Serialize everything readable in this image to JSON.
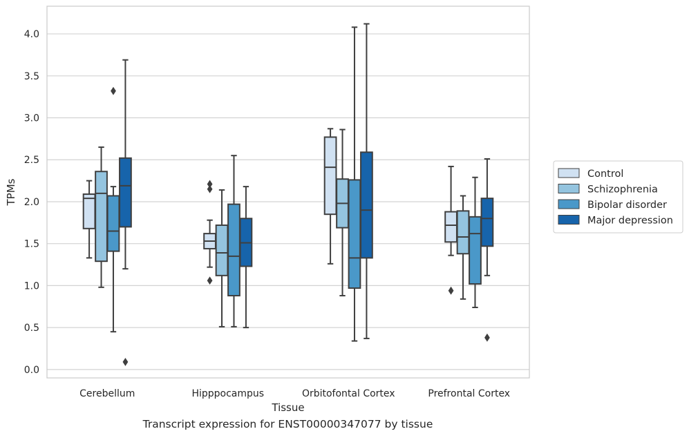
{
  "caption": "Transcript expression for ENST00000347077 by tissue",
  "chart_data": {
    "type": "box",
    "xlabel": "Tissue",
    "ylabel": "TPMs",
    "ylim": [
      -0.1,
      4.33
    ],
    "yticks": [
      "0.0",
      "0.5",
      "1.0",
      "1.5",
      "2.0",
      "2.5",
      "3.0",
      "3.5",
      "4.0"
    ],
    "grid": "horizontal",
    "legend_position": "right",
    "categories": [
      "Cerebellum",
      "Hipppocampus",
      "Orbitofontal Cortex",
      "Prefrontal Cortex"
    ],
    "series": [
      {
        "name": "Control",
        "color": "#d0e1f2",
        "boxes": [
          {
            "whislo": 1.33,
            "q1": 1.68,
            "med": 2.04,
            "q3": 2.09,
            "whishi": 2.25,
            "fliers": []
          },
          {
            "whislo": 1.22,
            "q1": 1.44,
            "med": 1.53,
            "q3": 1.62,
            "whishi": 1.78,
            "fliers": [
              1.06,
              2.15,
              2.21
            ]
          },
          {
            "whislo": 1.26,
            "q1": 1.85,
            "med": 2.41,
            "q3": 2.77,
            "whishi": 2.87,
            "fliers": []
          },
          {
            "whislo": 1.36,
            "q1": 1.52,
            "med": 1.72,
            "q3": 1.88,
            "whishi": 2.42,
            "fliers": [
              0.94
            ]
          }
        ]
      },
      {
        "name": "Schizophrenia",
        "color": "#94c4df",
        "boxes": [
          {
            "whislo": 0.98,
            "q1": 1.29,
            "med": 2.1,
            "q3": 2.36,
            "whishi": 2.65,
            "fliers": []
          },
          {
            "whislo": 0.51,
            "q1": 1.12,
            "med": 1.39,
            "q3": 1.72,
            "whishi": 2.14,
            "fliers": []
          },
          {
            "whislo": 0.88,
            "q1": 1.69,
            "med": 1.98,
            "q3": 2.27,
            "whishi": 2.86,
            "fliers": []
          },
          {
            "whislo": 0.84,
            "q1": 1.38,
            "med": 1.58,
            "q3": 1.89,
            "whishi": 2.07,
            "fliers": []
          }
        ]
      },
      {
        "name": "Bipolar disorder",
        "color": "#4a98c9",
        "boxes": [
          {
            "whislo": 0.45,
            "q1": 1.41,
            "med": 1.65,
            "q3": 2.07,
            "whishi": 2.18,
            "fliers": [
              3.32
            ]
          },
          {
            "whislo": 0.51,
            "q1": 0.88,
            "med": 1.35,
            "q3": 1.97,
            "whishi": 2.55,
            "fliers": []
          },
          {
            "whislo": 0.34,
            "q1": 0.97,
            "med": 1.33,
            "q3": 2.26,
            "whishi": 4.08,
            "fliers": []
          },
          {
            "whislo": 0.74,
            "q1": 1.02,
            "med": 1.62,
            "q3": 1.82,
            "whishi": 2.29,
            "fliers": []
          }
        ]
      },
      {
        "name": "Major depression",
        "color": "#1764ab",
        "boxes": [
          {
            "whislo": 1.2,
            "q1": 1.7,
            "med": 2.19,
            "q3": 2.52,
            "whishi": 3.69,
            "fliers": [
              0.09
            ]
          },
          {
            "whislo": 0.5,
            "q1": 1.23,
            "med": 1.51,
            "q3": 1.8,
            "whishi": 2.18,
            "fliers": []
          },
          {
            "whislo": 0.37,
            "q1": 1.33,
            "med": 1.9,
            "q3": 2.59,
            "whishi": 4.12,
            "fliers": []
          },
          {
            "whislo": 1.12,
            "q1": 1.47,
            "med": 1.8,
            "q3": 2.04,
            "whishi": 2.51,
            "fliers": [
              0.38
            ]
          }
        ]
      }
    ]
  }
}
